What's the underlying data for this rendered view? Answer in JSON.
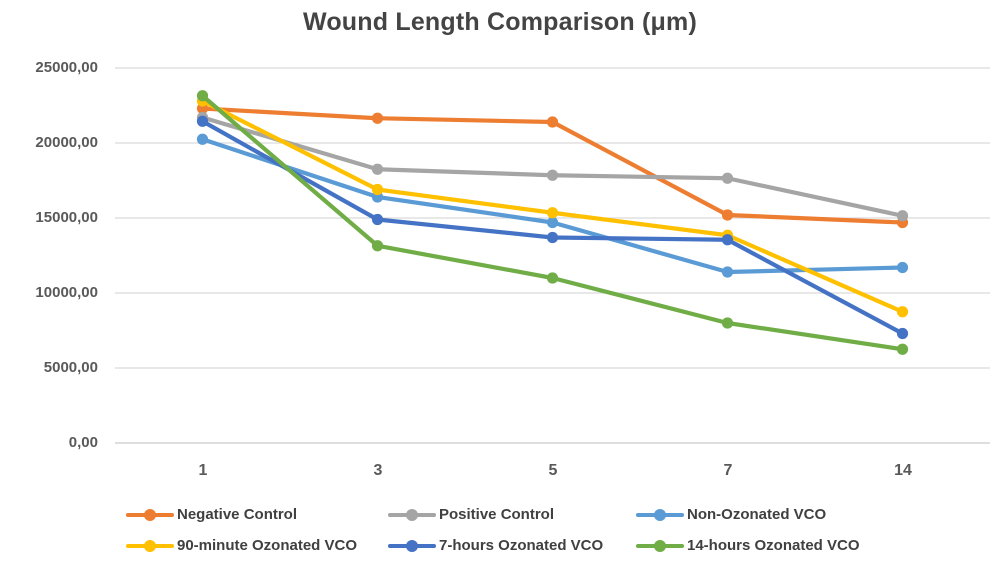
{
  "chart_data": {
    "type": "line",
    "title": "Wound Length Comparison (μm)",
    "xlabel": "",
    "ylabel": "",
    "categories": [
      "1",
      "3",
      "5",
      "7",
      "14"
    ],
    "ylim": [
      0,
      25000
    ],
    "ygrid_values": [
      25000,
      20000,
      15000,
      10000,
      5000,
      0
    ],
    "ytick_labels": [
      "25000,00",
      "20000,00",
      "15000,00",
      "10000,00",
      "5000,00",
      "0,00"
    ],
    "decimal_separator": ",",
    "grid": true,
    "legend_position": "bottom",
    "gridline_color": "#D9D9D9",
    "axis_line_color": "#C9C9C9",
    "series": [
      {
        "name": "Negative Control",
        "color": "#ED7D31",
        "values": [
          22300,
          21650,
          21400,
          15200,
          14700
        ]
      },
      {
        "name": "Positive Control",
        "color": "#A5A5A5",
        "values": [
          21700,
          18250,
          17850,
          17650,
          15150
        ]
      },
      {
        "name": "Non-Ozonated VCO",
        "color": "#5B9BD5",
        "values": [
          20250,
          16400,
          14700,
          11400,
          11700
        ]
      },
      {
        "name": "90-minute Ozonated VCO",
        "color": "#FFC000",
        "values": [
          22800,
          16900,
          15350,
          13850,
          8750
        ]
      },
      {
        "name": "7-hours Ozonated VCO",
        "color": "#4472C4",
        "values": [
          21450,
          14900,
          13700,
          13550,
          7300
        ]
      },
      {
        "name": "14-hours Ozonated VCO",
        "color": "#70AD47",
        "values": [
          23150,
          13150,
          11000,
          8000,
          6250
        ]
      }
    ]
  }
}
